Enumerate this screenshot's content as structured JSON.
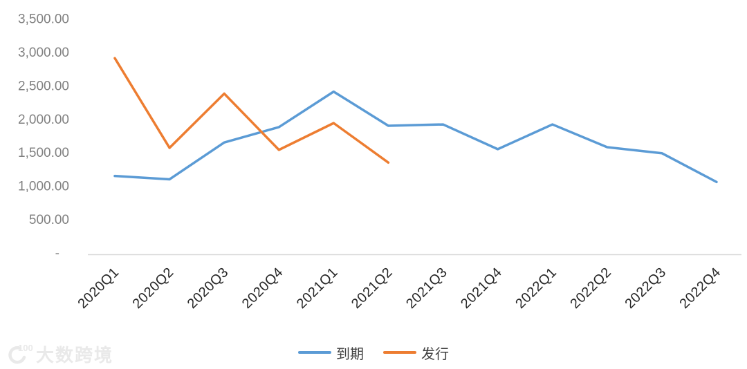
{
  "chart_data": {
    "type": "line",
    "categories": [
      "2020Q1",
      "2020Q2",
      "2020Q3",
      "2020Q4",
      "2021Q1",
      "2021Q2",
      "2021Q3",
      "2021Q4",
      "2022Q1",
      "2022Q2",
      "2022Q3",
      "2022Q4"
    ],
    "series": [
      {
        "name": "到期",
        "color": "#5B9BD5",
        "values": [
          1160,
          1110,
          1660,
          1890,
          2420,
          1910,
          1930,
          1560,
          1930,
          1590,
          1500,
          1070
        ]
      },
      {
        "name": "发行",
        "color": "#ED7D31",
        "values": [
          2920,
          1580,
          2390,
          1550,
          1950,
          1360
        ]
      }
    ],
    "title": "",
    "xlabel": "",
    "ylabel": "",
    "ylim": [
      0,
      3500
    ],
    "y_ticks": [
      {
        "value": 3500,
        "label": "3,500.00"
      },
      {
        "value": 3000,
        "label": "3,000.00"
      },
      {
        "value": 2500,
        "label": "2,500.00"
      },
      {
        "value": 2000,
        "label": "2,000.00"
      },
      {
        "value": 1500,
        "label": "1,500.00"
      },
      {
        "value": 1000,
        "label": "1,000.00"
      },
      {
        "value": 500,
        "label": "500.00"
      },
      {
        "value": 0,
        "label": "-"
      }
    ],
    "grid": false,
    "legend_position": "bottom"
  },
  "legend": {
    "items": [
      {
        "label": "到期",
        "color": "#5B9BD5"
      },
      {
        "label": "发行",
        "color": "#ED7D31"
      }
    ]
  },
  "watermark": {
    "logo": "100",
    "text": "大数跨境"
  },
  "colors": {
    "background": "#FFFFFF",
    "axis_line": "#D9D9D9",
    "y_tick_text": "#808080",
    "x_tick_text": "#262626",
    "legend_text": "#404040",
    "watermark": "#E9E9E9",
    "series_blue": "#5B9BD5",
    "series_orange": "#ED7D31"
  }
}
